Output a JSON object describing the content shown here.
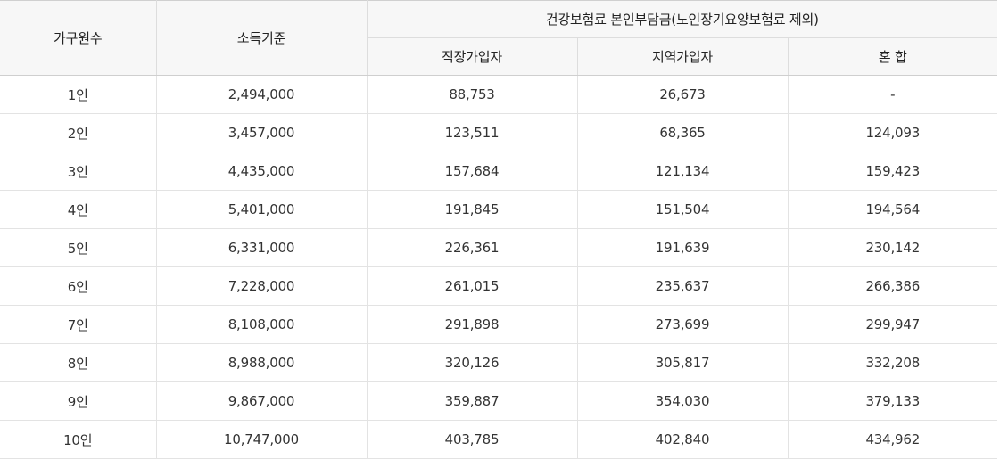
{
  "header": {
    "household": "가구원수",
    "income": "소득기준",
    "group": "건강보험료 본인부담금(노인장기요양보험료 제외)",
    "employee": "직장가입자",
    "regional": "지역가입자",
    "mixed": "혼 합"
  },
  "rows": [
    {
      "household": "1인",
      "income": "2,494,000",
      "employee": "88,753",
      "regional": "26,673",
      "mixed": "-"
    },
    {
      "household": "2인",
      "income": "3,457,000",
      "employee": "123,511",
      "regional": "68,365",
      "mixed": "124,093"
    },
    {
      "household": "3인",
      "income": "4,435,000",
      "employee": "157,684",
      "regional": "121,134",
      "mixed": "159,423"
    },
    {
      "household": "4인",
      "income": "5,401,000",
      "employee": "191,845",
      "regional": "151,504",
      "mixed": "194,564"
    },
    {
      "household": "5인",
      "income": "6,331,000",
      "employee": "226,361",
      "regional": "191,639",
      "mixed": "230,142"
    },
    {
      "household": "6인",
      "income": "7,228,000",
      "employee": "261,015",
      "regional": "235,637",
      "mixed": "266,386"
    },
    {
      "household": "7인",
      "income": "8,108,000",
      "employee": "291,898",
      "regional": "273,699",
      "mixed": "299,947"
    },
    {
      "household": "8인",
      "income": "8,988,000",
      "employee": "320,126",
      "regional": "305,817",
      "mixed": "332,208"
    },
    {
      "household": "9인",
      "income": "9,867,000",
      "employee": "359,887",
      "regional": "354,030",
      "mixed": "379,133"
    },
    {
      "household": "10인",
      "income": "10,747,000",
      "employee": "403,785",
      "regional": "402,840",
      "mixed": "434,962"
    }
  ]
}
